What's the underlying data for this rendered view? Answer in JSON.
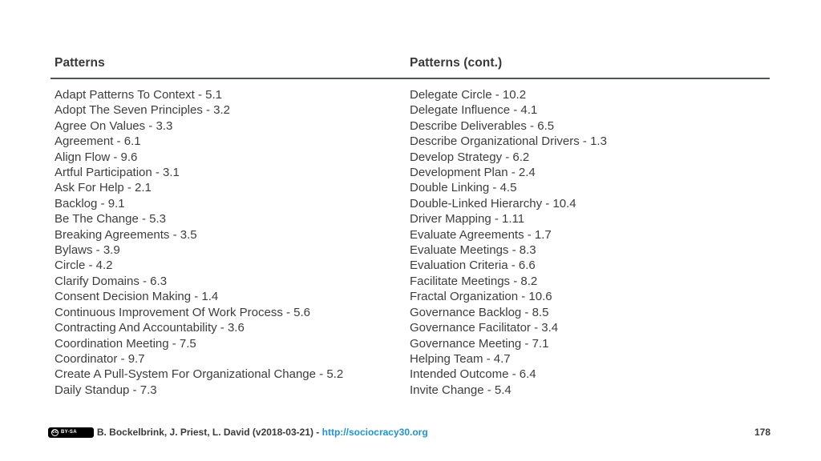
{
  "left_column": {
    "header": "Patterns",
    "items": [
      "Adapt Patterns To Context - 5.1",
      "Adopt The Seven Principles - 3.2",
      "Agree On Values - 3.3",
      "Agreement - 6.1",
      "Align Flow - 9.6",
      "Artful Participation - 3.1",
      "Ask For Help - 2.1",
      "Backlog - 9.1",
      "Be The Change - 5.3",
      "Breaking Agreements - 3.5",
      "Bylaws - 3.9",
      "Circle - 4.2",
      "Clarify Domains - 6.3",
      "Consent Decision Making - 1.4",
      "Continuous Improvement Of Work Process - 5.6",
      "Contracting And Accountability - 3.6",
      "Coordination Meeting - 7.5",
      "Coordinator - 9.7",
      "Create A Pull-System For Organizational Change - 5.2",
      "Daily Standup - 7.3"
    ]
  },
  "right_column": {
    "header": "Patterns (cont.)",
    "items": [
      "Delegate Circle - 10.2",
      "Delegate Influence - 4.1",
      "Describe Deliverables - 6.5",
      "Describe Organizational Drivers - 1.3",
      "Develop Strategy - 6.2",
      "Development Plan - 2.4",
      "Double Linking - 4.5",
      "Double-Linked Hierarchy - 10.4",
      "Driver Mapping - 1.11",
      "Evaluate Agreements - 1.7",
      "Evaluate Meetings - 8.3",
      "Evaluation Criteria - 6.6",
      "Facilitate Meetings - 8.2",
      "Fractal Organization - 10.6",
      "Governance Backlog - 8.5",
      "Governance Facilitator - 3.4",
      "Governance Meeting - 7.1",
      "Helping Team - 4.7",
      "Intended Outcome - 6.4",
      "Invite Change - 5.4"
    ]
  },
  "footer": {
    "badge": {
      "cc_text": "cc",
      "label": "BY-SA"
    },
    "attribution": "B. Bockelbrink, J. Priest, L. David (v2018-03-21) - ",
    "link": "http://sociocracy30.org",
    "page_number": "178"
  },
  "colors": {
    "text": "#3d3d3d",
    "link": "#1e93d6",
    "rule": "#515557",
    "badge_background": "#000000"
  }
}
